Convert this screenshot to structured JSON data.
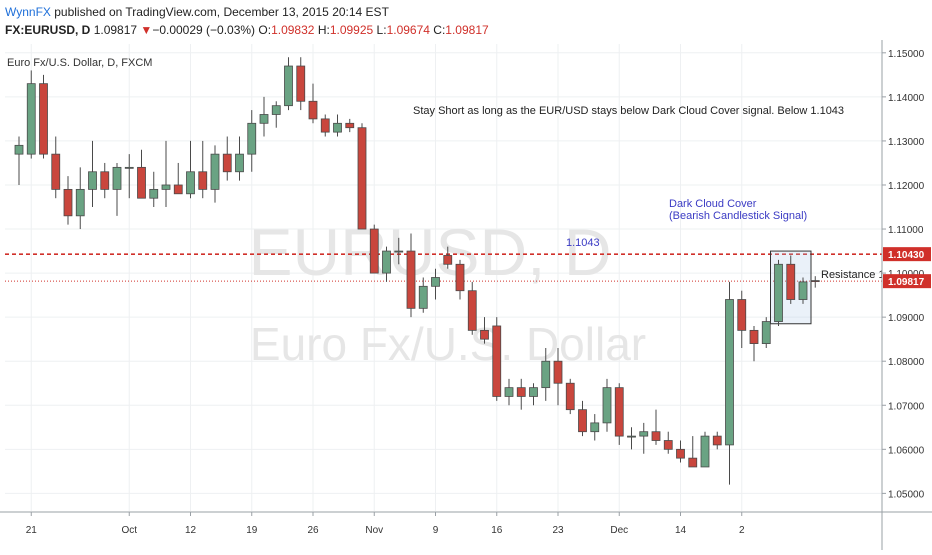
{
  "header": {
    "author": "WynnFX",
    "published_text": " published on TradingView.com, December 13, 2015 20:14 EST",
    "symbol": "FX:EURUSD, D",
    "last": "1.09817",
    "change_arrow": "▼",
    "change": "−0.00029 (−0.03%)",
    "open_label": "O:",
    "open": "1.09832",
    "high_label": "H:",
    "high": "1.09925",
    "low_label": "L:",
    "low": "1.09674",
    "close_label": "C:",
    "close": "1.09817"
  },
  "chart_data": {
    "type": "candlestick",
    "title": "Euro Fx/U.S. Dollar, D, FXCM",
    "watermark": {
      "line1": "EURUSD, D",
      "line2": "Euro Fx/U.S. Dollar"
    },
    "ylim": [
      1.046,
      1.152
    ],
    "yticks": [
      "1.15000",
      "1.14000",
      "1.13000",
      "1.12000",
      "1.11000",
      "1.10000",
      "1.09000",
      "1.08000",
      "1.07000",
      "1.06000",
      "1.05000"
    ],
    "ytick_values": [
      1.15,
      1.14,
      1.13,
      1.12,
      1.11,
      1.1,
      1.09,
      1.08,
      1.07,
      1.06,
      1.05
    ],
    "xticks": [
      {
        "label": "21",
        "index": 1
      },
      {
        "label": "Oct",
        "index": 9
      },
      {
        "label": "12",
        "index": 14
      },
      {
        "label": "19",
        "index": 19
      },
      {
        "label": "26",
        "index": 24
      },
      {
        "label": "Nov",
        "index": 29
      },
      {
        "label": "9",
        "index": 34
      },
      {
        "label": "16",
        "index": 39
      },
      {
        "label": "23",
        "index": 44
      },
      {
        "label": "Dec",
        "index": 49
      },
      {
        "label": "14",
        "index": 54
      },
      {
        "label": "2",
        "index": 59
      }
    ],
    "colors": {
      "up": "#6aa383",
      "down": "#c9463d",
      "level": "#d0302a",
      "annotation": "#3b3bc4"
    },
    "candles": [
      {
        "o": 1.127,
        "h": 1.131,
        "l": 1.12,
        "c": 1.129
      },
      {
        "o": 1.127,
        "h": 1.146,
        "l": 1.126,
        "c": 1.143
      },
      {
        "o": 1.143,
        "h": 1.145,
        "l": 1.126,
        "c": 1.127
      },
      {
        "o": 1.127,
        "h": 1.131,
        "l": 1.117,
        "c": 1.119
      },
      {
        "o": 1.119,
        "h": 1.122,
        "l": 1.111,
        "c": 1.113
      },
      {
        "o": 1.113,
        "h": 1.124,
        "l": 1.11,
        "c": 1.119
      },
      {
        "o": 1.119,
        "h": 1.13,
        "l": 1.115,
        "c": 1.123
      },
      {
        "o": 1.123,
        "h": 1.125,
        "l": 1.117,
        "c": 1.119
      },
      {
        "o": 1.119,
        "h": 1.125,
        "l": 1.113,
        "c": 1.124
      },
      {
        "o": 1.124,
        "h": 1.127,
        "l": 1.117,
        "c": 1.124
      },
      {
        "o": 1.124,
        "h": 1.128,
        "l": 1.117,
        "c": 1.117
      },
      {
        "o": 1.117,
        "h": 1.123,
        "l": 1.115,
        "c": 1.119
      },
      {
        "o": 1.119,
        "h": 1.13,
        "l": 1.115,
        "c": 1.12
      },
      {
        "o": 1.12,
        "h": 1.125,
        "l": 1.118,
        "c": 1.118
      },
      {
        "o": 1.118,
        "h": 1.13,
        "l": 1.117,
        "c": 1.123
      },
      {
        "o": 1.123,
        "h": 1.13,
        "l": 1.117,
        "c": 1.119
      },
      {
        "o": 1.119,
        "h": 1.129,
        "l": 1.116,
        "c": 1.127
      },
      {
        "o": 1.127,
        "h": 1.131,
        "l": 1.121,
        "c": 1.123
      },
      {
        "o": 1.123,
        "h": 1.131,
        "l": 1.121,
        "c": 1.127
      },
      {
        "o": 1.127,
        "h": 1.137,
        "l": 1.123,
        "c": 1.134
      },
      {
        "o": 1.134,
        "h": 1.14,
        "l": 1.131,
        "c": 1.136
      },
      {
        "o": 1.136,
        "h": 1.139,
        "l": 1.133,
        "c": 1.138
      },
      {
        "o": 1.138,
        "h": 1.149,
        "l": 1.137,
        "c": 1.147
      },
      {
        "o": 1.147,
        "h": 1.149,
        "l": 1.137,
        "c": 1.139
      },
      {
        "o": 1.139,
        "h": 1.143,
        "l": 1.134,
        "c": 1.135
      },
      {
        "o": 1.135,
        "h": 1.136,
        "l": 1.131,
        "c": 1.132
      },
      {
        "o": 1.132,
        "h": 1.136,
        "l": 1.131,
        "c": 1.134
      },
      {
        "o": 1.134,
        "h": 1.135,
        "l": 1.132,
        "c": 1.133
      },
      {
        "o": 1.133,
        "h": 1.134,
        "l": 1.11,
        "c": 1.11
      },
      {
        "o": 1.11,
        "h": 1.111,
        "l": 1.1,
        "c": 1.1
      },
      {
        "o": 1.1,
        "h": 1.106,
        "l": 1.098,
        "c": 1.105
      },
      {
        "o": 1.105,
        "h": 1.108,
        "l": 1.102,
        "c": 1.105
      },
      {
        "o": 1.105,
        "h": 1.109,
        "l": 1.09,
        "c": 1.092
      },
      {
        "o": 1.092,
        "h": 1.099,
        "l": 1.091,
        "c": 1.097
      },
      {
        "o": 1.097,
        "h": 1.101,
        "l": 1.094,
        "c": 1.099
      },
      {
        "o": 1.104,
        "h": 1.106,
        "l": 1.101,
        "c": 1.102
      },
      {
        "o": 1.102,
        "h": 1.103,
        "l": 1.094,
        "c": 1.096
      },
      {
        "o": 1.096,
        "h": 1.098,
        "l": 1.086,
        "c": 1.087
      },
      {
        "o": 1.087,
        "h": 1.09,
        "l": 1.084,
        "c": 1.085
      },
      {
        "o": 1.088,
        "h": 1.09,
        "l": 1.071,
        "c": 1.072
      },
      {
        "o": 1.072,
        "h": 1.076,
        "l": 1.07,
        "c": 1.074
      },
      {
        "o": 1.074,
        "h": 1.076,
        "l": 1.069,
        "c": 1.072
      },
      {
        "o": 1.072,
        "h": 1.075,
        "l": 1.07,
        "c": 1.074
      },
      {
        "o": 1.074,
        "h": 1.083,
        "l": 1.071,
        "c": 1.08
      },
      {
        "o": 1.08,
        "h": 1.083,
        "l": 1.07,
        "c": 1.075
      },
      {
        "o": 1.075,
        "h": 1.076,
        "l": 1.068,
        "c": 1.069
      },
      {
        "o": 1.069,
        "h": 1.071,
        "l": 1.063,
        "c": 1.064
      },
      {
        "o": 1.064,
        "h": 1.068,
        "l": 1.062,
        "c": 1.066
      },
      {
        "o": 1.066,
        "h": 1.076,
        "l": 1.064,
        "c": 1.074
      },
      {
        "o": 1.074,
        "h": 1.075,
        "l": 1.061,
        "c": 1.063
      },
      {
        "o": 1.063,
        "h": 1.065,
        "l": 1.06,
        "c": 1.063
      },
      {
        "o": 1.063,
        "h": 1.066,
        "l": 1.059,
        "c": 1.064
      },
      {
        "o": 1.064,
        "h": 1.069,
        "l": 1.061,
        "c": 1.062
      },
      {
        "o": 1.062,
        "h": 1.064,
        "l": 1.059,
        "c": 1.06
      },
      {
        "o": 1.06,
        "h": 1.062,
        "l": 1.057,
        "c": 1.058
      },
      {
        "o": 1.058,
        "h": 1.063,
        "l": 1.056,
        "c": 1.056
      },
      {
        "o": 1.056,
        "h": 1.064,
        "l": 1.056,
        "c": 1.063
      },
      {
        "o": 1.063,
        "h": 1.064,
        "l": 1.06,
        "c": 1.061
      },
      {
        "o": 1.061,
        "h": 1.098,
        "l": 1.052,
        "c": 1.094
      },
      {
        "o": 1.094,
        "h": 1.096,
        "l": 1.083,
        "c": 1.087
      },
      {
        "o": 1.087,
        "h": 1.088,
        "l": 1.08,
        "c": 1.084
      },
      {
        "o": 1.084,
        "h": 1.09,
        "l": 1.083,
        "c": 1.089
      },
      {
        "o": 1.089,
        "h": 1.103,
        "l": 1.088,
        "c": 1.102
      },
      {
        "o": 1.102,
        "h": 1.104,
        "l": 1.093,
        "c": 1.094
      },
      {
        "o": 1.094,
        "h": 1.099,
        "l": 1.093,
        "c": 1.098
      },
      {
        "o": 1.0983,
        "h": 1.0993,
        "l": 1.0967,
        "c": 1.0982
      }
    ],
    "levels": [
      {
        "name": "resistance",
        "value": 1.1043,
        "style": "dashed",
        "label": "1.1043",
        "axis_label": "1.10430"
      },
      {
        "name": "last-price",
        "value": 1.09817,
        "style": "dotted",
        "axis_label": "1.09817"
      }
    ],
    "annotations": {
      "stay_short": "Stay Short as long as the EUR/USD stays below Dark Cloud Cover signal.  Below 1.1043",
      "dark_cloud_line1": "Dark Cloud Cover",
      "dark_cloud_line2": "(Bearish Candlestick Signal)",
      "resistance": "Resistance 1"
    },
    "highlight_box": {
      "from_index": 62,
      "to_index": 64,
      "high": 1.105,
      "low": 1.0885
    }
  }
}
